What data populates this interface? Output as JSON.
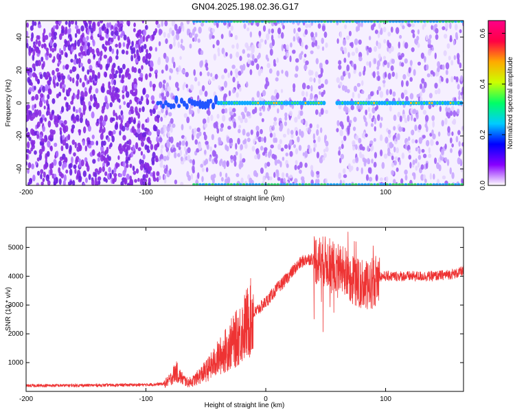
{
  "title": "GN04.2025.198.02.36.G17",
  "colors": {
    "background": "#ffffff",
    "snr_line": "#ee3333",
    "axis": "#000000"
  },
  "chart_data": [
    {
      "type": "heatmap",
      "xlabel": "Height of straight line (km)",
      "ylabel": "Frequency (Hz)",
      "xlim": [
        -200,
        165
      ],
      "ylim": [
        -50,
        50
      ],
      "xticks": [
        {
          "value": -200,
          "label": "-200"
        },
        {
          "value": -100,
          "label": "-100"
        },
        {
          "value": 0,
          "label": "0"
        },
        {
          "value": 100,
          "label": "100"
        }
      ],
      "yticks": [
        {
          "value": -40,
          "label": "-40"
        },
        {
          "value": -20,
          "label": "-20"
        },
        {
          "value": 0,
          "label": "0"
        },
        {
          "value": 20,
          "label": "20"
        },
        {
          "value": 40,
          "label": "40"
        }
      ],
      "colorbar": {
        "label": "Normalized spectral amplitude",
        "range": [
          0,
          0.65
        ],
        "ticks": [
          {
            "value": 0,
            "label": "0.0"
          },
          {
            "value": 0.2,
            "label": "0.2"
          },
          {
            "value": 0.4,
            "label": "0.4"
          },
          {
            "value": 0.6,
            "label": "0.6"
          }
        ],
        "colormap": [
          "#ffffff",
          "#8800ff",
          "#0000ff",
          "#00ccff",
          "#00ff66",
          "#ccff00",
          "#ffaa00",
          "#ff0044",
          "#ff0088"
        ]
      },
      "features": {
        "carrier_frequency_hz": 0,
        "carrier_start_km": -90,
        "edge_lines_start_km": -60,
        "gap_km": [
          50,
          58
        ]
      }
    },
    {
      "type": "line",
      "xlabel": "Height of straight line (km)",
      "ylabel": "SNR (10 * v/v)",
      "xlim": [
        -200,
        165
      ],
      "ylim": [
        0,
        5700
      ],
      "xticks": [
        {
          "value": -200,
          "label": "-200"
        },
        {
          "value": -100,
          "label": "-100"
        },
        {
          "value": 0,
          "label": "0"
        },
        {
          "value": 100,
          "label": "100"
        }
      ],
      "yticks": [
        {
          "value": 1000,
          "label": "1000"
        },
        {
          "value": 2000,
          "label": "2000"
        },
        {
          "value": 3000,
          "label": "3000"
        },
        {
          "value": 4000,
          "label": "4000"
        },
        {
          "value": 5000,
          "label": "5000"
        }
      ],
      "series": [
        {
          "color": "#ee3333",
          "x": [
            -200,
            -150,
            -100,
            -85,
            -80,
            -75,
            -70,
            -65,
            -60,
            -55,
            -50,
            -45,
            -40,
            -35,
            -30,
            -25,
            -20,
            -15,
            -10,
            -5,
            0,
            5,
            10,
            15,
            20,
            25,
            30,
            35,
            40,
            45,
            50,
            55,
            60,
            65,
            70,
            75,
            80,
            85,
            90,
            95,
            100,
            110,
            120,
            130,
            140,
            150,
            160,
            165
          ],
          "y": [
            200,
            210,
            230,
            260,
            400,
            700,
            450,
            300,
            380,
            550,
            700,
            900,
            1150,
            1350,
            1600,
            1800,
            2100,
            2400,
            2700,
            2900,
            3100,
            3350,
            3600,
            3800,
            4050,
            4300,
            4500,
            4600,
            4600,
            4550,
            4500,
            4400,
            4300,
            4200,
            4000,
            3800,
            3700,
            3600,
            3800,
            4000,
            4000,
            4000,
            4000,
            4000,
            4000,
            4050,
            4100,
            4200
          ]
        }
      ]
    }
  ]
}
